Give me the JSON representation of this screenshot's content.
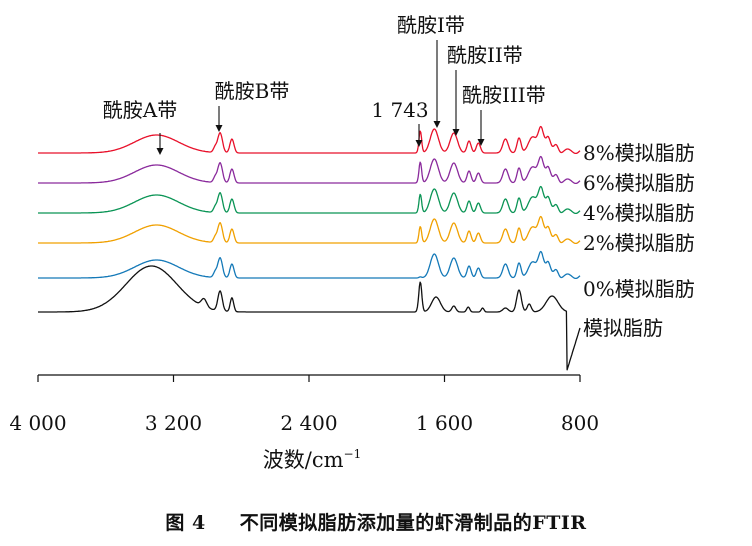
{
  "chart_data": {
    "type": "line",
    "x_axis": {
      "label_main": "波数/cm",
      "label_exp": "−1",
      "range": [
        4000,
        800
      ],
      "reversed": true,
      "ticks": [
        4000,
        3200,
        2400,
        1600,
        800
      ],
      "tick_labels": [
        "4 000",
        "3 200",
        "2 400",
        "1 600",
        "800"
      ]
    },
    "grid": false,
    "series": [
      {
        "name": "8%模拟脂肪",
        "color": "#e8102a"
      },
      {
        "name": "6%模拟脂肪",
        "color": "#8a2a9c"
      },
      {
        "name": "4%模拟脂肪",
        "color": "#0a9455"
      },
      {
        "name": "2%模拟脂肪",
        "color": "#f0a000"
      },
      {
        "name": "0%模拟脂肪",
        "color": "#1479b8"
      },
      {
        "name": "模拟脂肪",
        "color": "#111111"
      }
    ],
    "annotations": [
      {
        "text": "酰胺A带",
        "x": 3300
      },
      {
        "text": "酰胺B带",
        "x": 2925
      },
      {
        "text": "1 743",
        "x": 1743
      },
      {
        "text": "酰胺I带",
        "x": 1640
      },
      {
        "text": "酰胺II带",
        "x": 1545
      },
      {
        "text": "酰胺III带",
        "x": 1400
      }
    ]
  },
  "caption": {
    "figure_no": "图 4",
    "title": "不同模拟脂肪添加量的虾滑制品的FTIR"
  }
}
